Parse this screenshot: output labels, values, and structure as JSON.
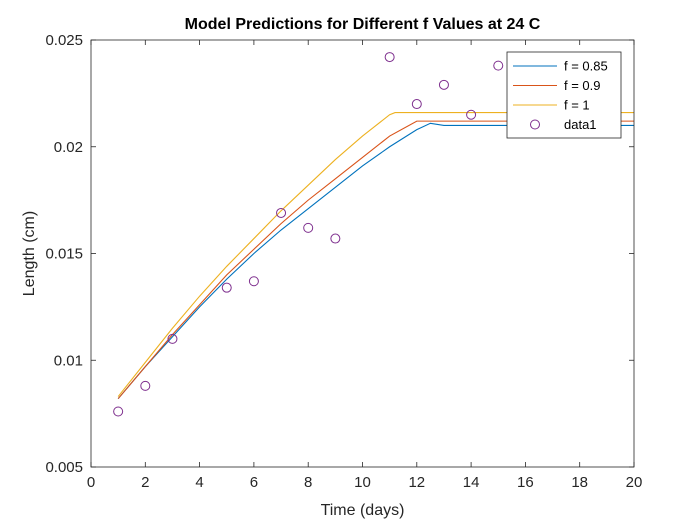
{
  "chart_data": {
    "type": "line",
    "title": "Model Predictions for Different f Values at 24  C",
    "xlabel": "Time (days)",
    "ylabel": "Length (cm)",
    "xlim": [
      0,
      20
    ],
    "ylim": [
      0.005,
      0.025
    ],
    "x_ticks": [
      "0",
      "2",
      "4",
      "6",
      "8",
      "10",
      "12",
      "14",
      "16",
      "18",
      "20"
    ],
    "y_ticks": [
      "0.005",
      "0.01",
      "0.015",
      "0.02",
      "0.025"
    ],
    "grid": false,
    "legend_position": "top-right",
    "series": [
      {
        "name": "f = 0.85",
        "kind": "line",
        "color": "#0072BD",
        "x": [
          1,
          2,
          3,
          4,
          5,
          6,
          7,
          8,
          9,
          10,
          11,
          12,
          12.5,
          13,
          14,
          16,
          18,
          20
        ],
        "y": [
          0.0082,
          0.0097,
          0.0111,
          0.0125,
          0.0138,
          0.015,
          0.0161,
          0.0171,
          0.0181,
          0.0191,
          0.02,
          0.0208,
          0.0211,
          0.021,
          0.021,
          0.021,
          0.021,
          0.021
        ]
      },
      {
        "name": "f = 0.9",
        "kind": "line",
        "color": "#D95319",
        "x": [
          1,
          2,
          3,
          4,
          5,
          6,
          7,
          8,
          9,
          10,
          11,
          12,
          14,
          16,
          18,
          20
        ],
        "y": [
          0.0082,
          0.0097,
          0.0112,
          0.0126,
          0.014,
          0.0152,
          0.0164,
          0.0175,
          0.0185,
          0.0195,
          0.0205,
          0.0212,
          0.0212,
          0.0212,
          0.0212,
          0.0212
        ]
      },
      {
        "name": "f = 1",
        "kind": "line",
        "color": "#EDB120",
        "x": [
          1,
          2,
          3,
          4,
          5,
          6,
          7,
          8,
          9,
          10,
          11,
          11.2,
          12,
          14,
          16,
          18,
          20
        ],
        "y": [
          0.0083,
          0.0099,
          0.0115,
          0.013,
          0.0144,
          0.0157,
          0.017,
          0.0182,
          0.0194,
          0.0205,
          0.0215,
          0.0216,
          0.0216,
          0.0216,
          0.0216,
          0.0216,
          0.0216
        ]
      },
      {
        "name": "data1",
        "kind": "scatter",
        "color": "#7E2F8E",
        "x": [
          1,
          2,
          3,
          5,
          6,
          7,
          8,
          9,
          11,
          12,
          13,
          14,
          15
        ],
        "y": [
          0.0076,
          0.0088,
          0.011,
          0.0134,
          0.0137,
          0.0169,
          0.0162,
          0.0157,
          0.0242,
          0.022,
          0.0229,
          0.0215,
          0.0238
        ]
      }
    ]
  }
}
